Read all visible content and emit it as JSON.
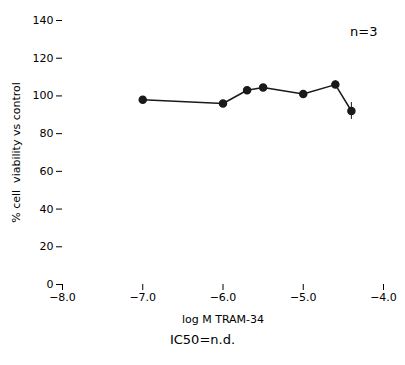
{
  "chart_data": {
    "type": "line",
    "xlabel": "log M TRAM-34",
    "ylabel": "% cell  viability vs control",
    "x": [
      -7,
      -6,
      -5.7,
      -5.5,
      -5.0,
      -4.6,
      -4.4
    ],
    "values": [
      98.0,
      96.0,
      103.0,
      104.5,
      101.0,
      106.0,
      92.0
    ],
    "yerr": [
      0.8,
      1.0,
      1.2,
      1.2,
      1.5,
      2.0,
      4.5
    ],
    "xlim": [
      -8,
      -4
    ],
    "ylim": [
      0,
      140
    ],
    "xticks": [
      -8,
      -7,
      -6,
      -5,
      -4
    ],
    "yticks": [
      0,
      20,
      40,
      60,
      80,
      100,
      120,
      140
    ],
    "annotation": "n=3",
    "caption": "IC50=n.d.",
    "color": "#1a1a1a",
    "marker": "o"
  }
}
